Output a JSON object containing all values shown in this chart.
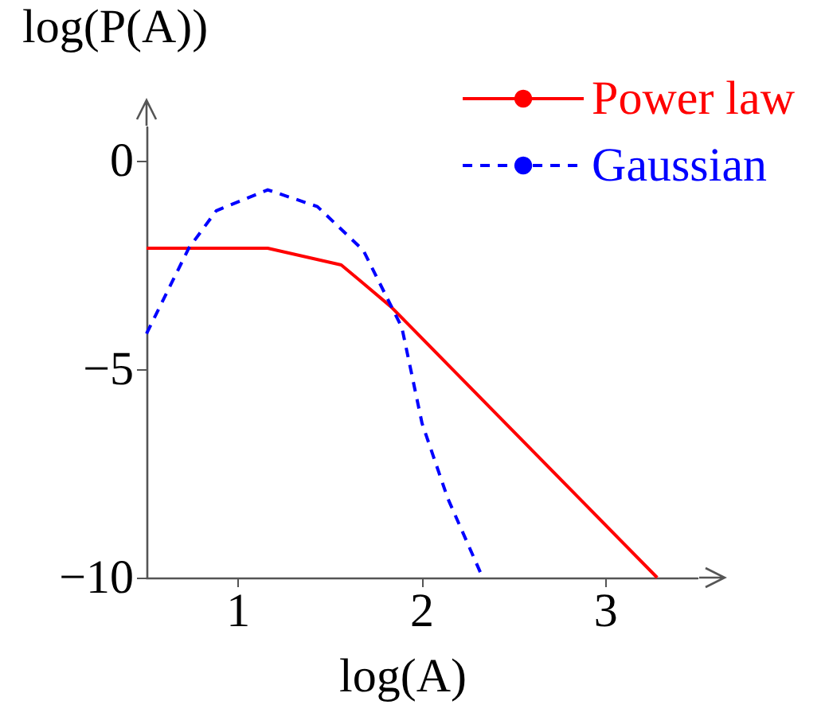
{
  "chart_data": {
    "type": "line",
    "xlabel": "log(A)",
    "ylabel": "log(P(A))",
    "xlim": [
      0.5,
      3.5
    ],
    "ylim": [
      -10,
      0.8
    ],
    "xticks": [
      1,
      2,
      3
    ],
    "yticks": [
      -10,
      -5,
      0
    ],
    "grid": false,
    "legend": "top right",
    "marker": "none",
    "series": [
      {
        "name": "Power law",
        "color": "#ff0000",
        "line_style": "solid",
        "x": [
          0.5,
          1.16,
          1.56,
          1.66,
          1.83,
          3.28
        ],
        "values": [
          -2.1,
          -2.1,
          -2.5,
          -2.87,
          -3.5,
          -10
        ]
      },
      {
        "name": "Gaussian",
        "color": "#0000ff",
        "line_style": "dashed",
        "x": [
          0.5,
          0.73,
          0.88,
          1.16,
          1.43,
          1.68,
          1.89,
          2.0,
          2.14,
          2.33
        ],
        "values": [
          -4.15,
          -2.1,
          -1.2,
          -0.7,
          -1.1,
          -2.15,
          -4.0,
          -6.3,
          -8.1,
          -10
        ]
      }
    ]
  }
}
